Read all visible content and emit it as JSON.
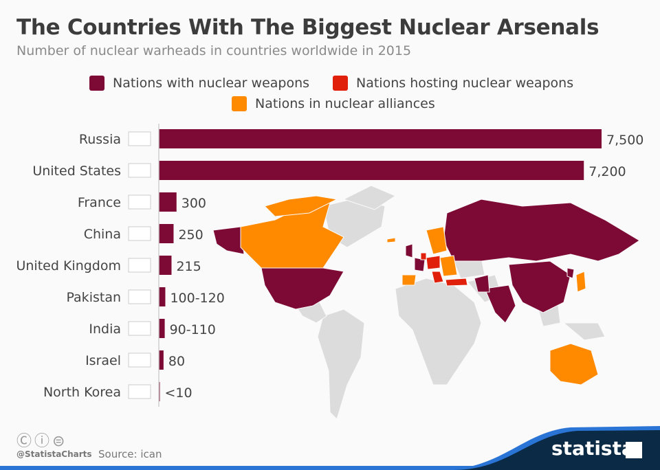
{
  "title": "The Countries With The Biggest Nuclear Arsenals",
  "subtitle": "Number of nuclear warheads in countries worldwide in 2015",
  "legend": [
    {
      "label": "Nations with nuclear weapons",
      "color": "#7d0a35"
    },
    {
      "label": "Nations hosting nuclear weapons",
      "color": "#e0200a"
    },
    {
      "label": "Nations in nuclear alliances",
      "color": "#ff8a00"
    }
  ],
  "chart_data": {
    "type": "bar",
    "orientation": "horizontal",
    "title": "The Countries With The Biggest Nuclear Arsenals",
    "subtitle": "Number of nuclear warheads in countries worldwide in 2015",
    "categories": [
      "Russia",
      "United States",
      "France",
      "China",
      "United Kingdom",
      "Pakistan",
      "India",
      "Israel",
      "North Korea"
    ],
    "values": [
      7500,
      7200,
      300,
      250,
      215,
      110,
      100,
      80,
      10
    ],
    "value_labels": [
      "7,500",
      "7,200",
      "300",
      "250",
      "215",
      "100-120",
      "90-110",
      "80",
      "<10"
    ],
    "flags": [
      "russia-flag",
      "usa-flag",
      "france-flag",
      "china-flag",
      "uk-flag",
      "pakistan-flag",
      "india-flag",
      "israel-flag",
      "north-korea-flag"
    ],
    "bar_color": "#7d0a35",
    "xlim": [
      0,
      7500
    ],
    "grid": false
  },
  "footer": {
    "handle": "@StatistaCharts",
    "source": "Source: ican",
    "brand": "statista"
  }
}
